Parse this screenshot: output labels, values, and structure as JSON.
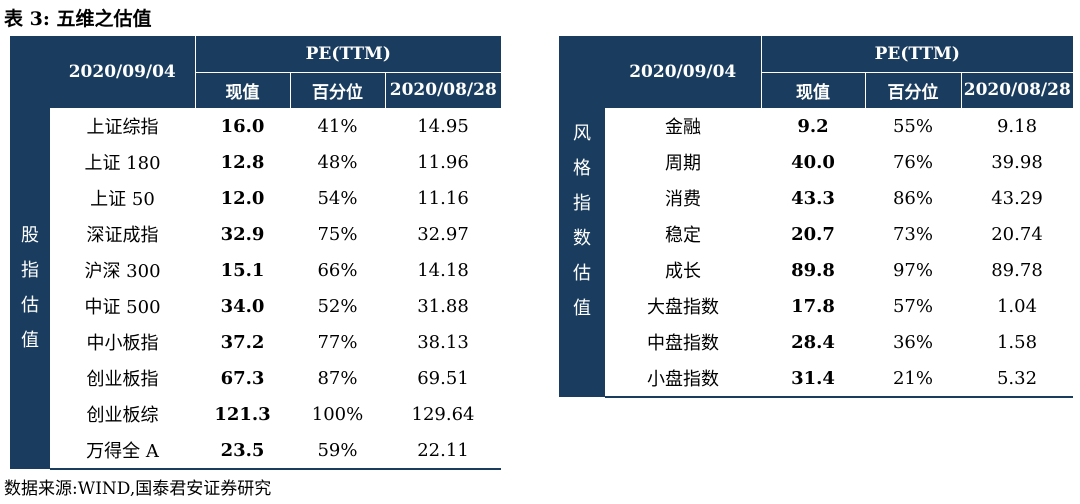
{
  "title": "表 3:  五维之估值",
  "source": "数据来源:WIND,国泰君安证券研究",
  "left_table": {
    "date_header": "2020/09/04",
    "pe_header": "PE(TTM)",
    "col_current": "现值",
    "col_percentile": "百分位",
    "col_prev": "2020/08/28",
    "side_label": [
      "股",
      "指",
      "估",
      "值"
    ],
    "rows": [
      {
        "name": "上证综指",
        "current": "16.0",
        "percentile": "41%",
        "prev": "14.95"
      },
      {
        "name": "上证 180",
        "current": "12.8",
        "percentile": "48%",
        "prev": "11.96"
      },
      {
        "name": "上证 50",
        "current": "12.0",
        "percentile": "54%",
        "prev": "11.16"
      },
      {
        "name": "深证成指",
        "current": "32.9",
        "percentile": "75%",
        "prev": "32.97"
      },
      {
        "name": "沪深 300",
        "current": "15.1",
        "percentile": "66%",
        "prev": "14.18"
      },
      {
        "name": "中证 500",
        "current": "34.0",
        "percentile": "52%",
        "prev": "31.88"
      },
      {
        "name": "中小板指",
        "current": "37.2",
        "percentile": "77%",
        "prev": "38.13"
      },
      {
        "name": "创业板指",
        "current": "67.3",
        "percentile": "87%",
        "prev": "69.51"
      },
      {
        "name": "创业板综",
        "current": "121.3",
        "percentile": "100%",
        "prev": "129.64"
      },
      {
        "name": "万得全 A",
        "current": "23.5",
        "percentile": "59%",
        "prev": "22.11"
      }
    ]
  },
  "right_table": {
    "date_header": "2020/09/04",
    "pe_header": "PE(TTM)",
    "col_current": "现值",
    "col_percentile": "百分位",
    "col_prev": "2020/08/28",
    "side_label": [
      "风",
      "格",
      "指",
      "数",
      "估",
      "值"
    ],
    "rows": [
      {
        "name": "金融",
        "current": "9.2",
        "percentile": "55%",
        "prev": "9.18"
      },
      {
        "name": "周期",
        "current": "40.0",
        "percentile": "76%",
        "prev": "39.98"
      },
      {
        "name": "消费",
        "current": "43.3",
        "percentile": "86%",
        "prev": "43.29"
      },
      {
        "name": "稳定",
        "current": "20.7",
        "percentile": "73%",
        "prev": "20.74"
      },
      {
        "name": "成长",
        "current": "89.8",
        "percentile": "97%",
        "prev": "89.78"
      },
      {
        "name": "大盘指数",
        "current": "17.8",
        "percentile": "57%",
        "prev": "1.04"
      },
      {
        "name": "中盘指数",
        "current": "28.4",
        "percentile": "36%",
        "prev": "1.58"
      },
      {
        "name": "小盘指数",
        "current": "31.4",
        "percentile": "21%",
        "prev": "5.32"
      }
    ]
  }
}
